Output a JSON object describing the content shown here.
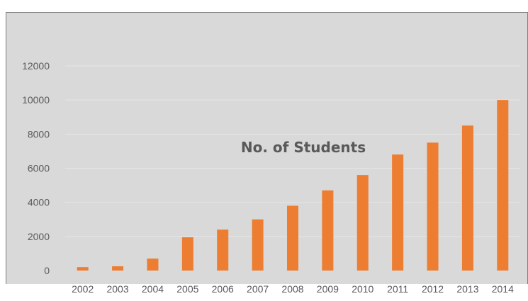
{
  "chart_data": {
    "type": "bar",
    "title": "No. of Students",
    "xlabel": "",
    "ylabel": "",
    "categories": [
      "2002",
      "2003",
      "2004",
      "2005",
      "2006",
      "2007",
      "2008",
      "2009",
      "2010",
      "2011",
      "2012",
      "2013",
      "2014"
    ],
    "series": [
      {
        "color": "#ed7d31",
        "values": [
          200,
          250,
          700,
          1950,
          2400,
          3000,
          3800,
          4700,
          5600,
          6800,
          7500,
          8500,
          10000
        ]
      }
    ],
    "ylim": [
      0,
      12000
    ],
    "yticks": [
      "0",
      "2000",
      "4000",
      "6000",
      "8000",
      "10000",
      "12000"
    ],
    "grid": true,
    "legend": "none",
    "background_color": "#d9d9d9",
    "gridline_color": "#e6e6e6"
  }
}
